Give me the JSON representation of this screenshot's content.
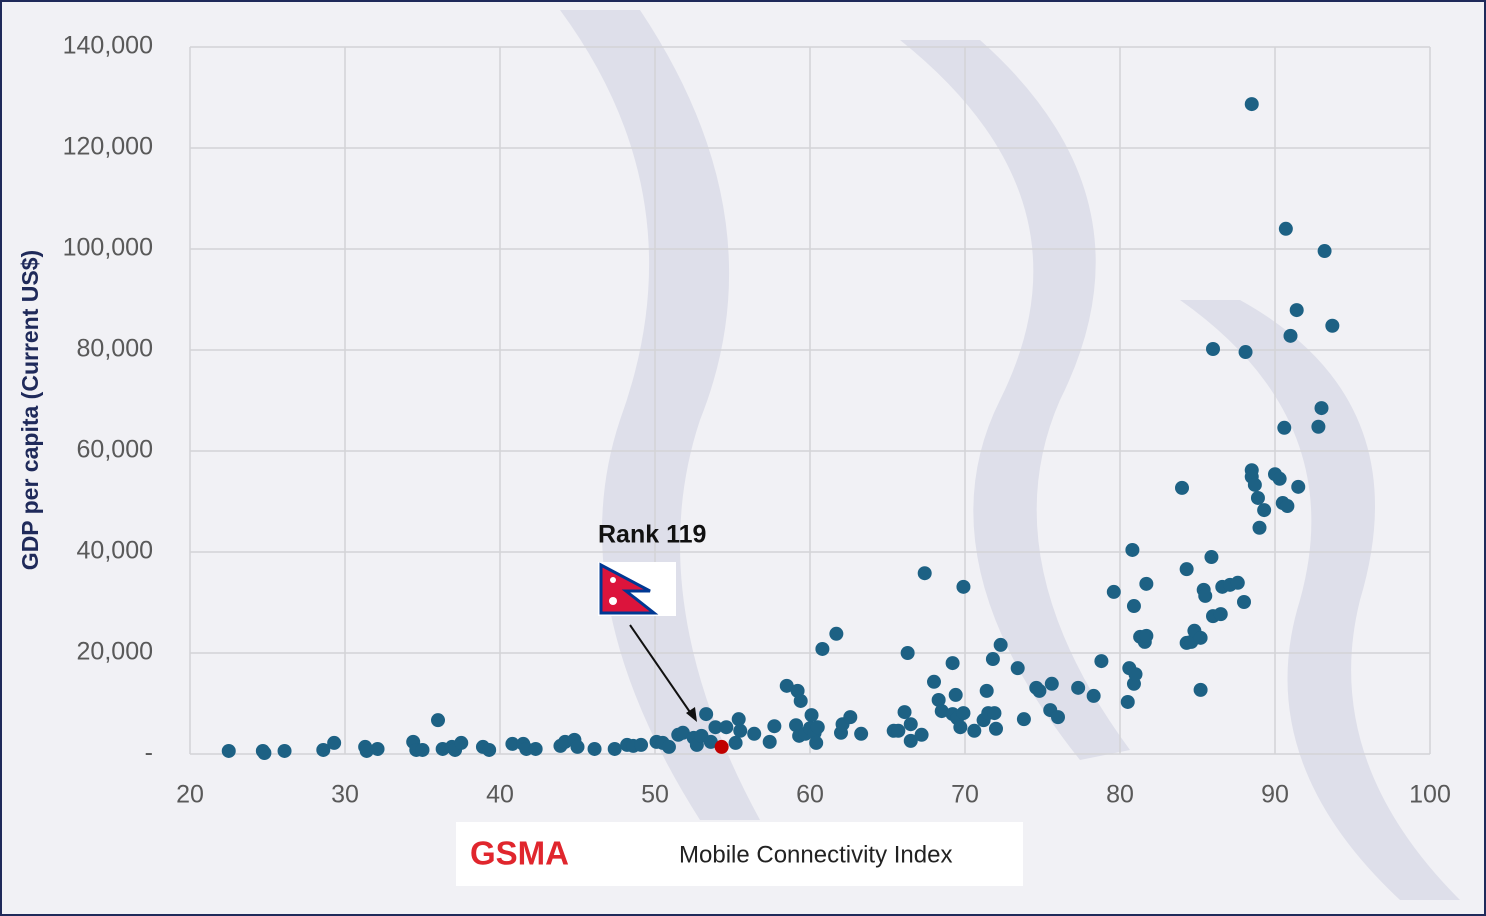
{
  "chart_data": {
    "type": "scatter",
    "ylabel": "GDP per capita (Current US$)",
    "annotation": "Rank 119",
    "xlim": [
      20,
      100
    ],
    "xticks": [
      20,
      30,
      40,
      50,
      60,
      70,
      80,
      90,
      100
    ],
    "ylim": [
      0,
      140000
    ],
    "yticks": [
      {
        "value": 0,
        "label": "-"
      },
      {
        "value": 20000,
        "label": "20,000"
      },
      {
        "value": 40000,
        "label": "40,000"
      },
      {
        "value": 60000,
        "label": "60,000"
      },
      {
        "value": 80000,
        "label": "80,000"
      },
      {
        "value": 100000,
        "label": "100,000"
      },
      {
        "value": 120000,
        "label": "120,000"
      },
      {
        "value": 140000,
        "label": "140,000"
      }
    ],
    "grid": true,
    "series": [
      {
        "color": "#1d6184",
        "x": [
          22.5,
          24.7,
          24.8,
          26.1,
          28.6,
          29.3,
          31.3,
          31.4,
          32.1,
          34.4,
          34.6,
          35.0,
          36.0,
          36.3,
          36.9,
          37.1,
          37.5,
          38.9,
          39.3,
          40.8,
          41.5,
          41.7,
          42.3,
          43.9,
          44.2,
          44.8,
          45.0,
          46.1,
          47.4,
          48.2,
          48.6,
          49.1,
          50.1,
          50.5,
          50.9,
          51.5,
          51.8,
          52.5,
          52.7,
          53.0,
          53.3,
          53.6,
          53.9,
          54.6,
          55.2,
          55.4,
          55.5,
          56.4,
          57.4,
          57.7,
          58.5,
          59.2,
          59.4,
          59.1,
          59.3,
          59.7,
          60.1,
          60.0,
          60.3,
          60.4,
          60.5,
          60.8,
          61.7,
          62.0,
          62.1,
          62.6,
          63.3,
          65.4,
          65.7,
          66.1,
          66.3,
          66.5,
          66.5,
          67.2,
          67.4,
          68.0,
          68.3,
          68.5,
          69.2,
          69.2,
          69.4,
          69.5,
          69.7,
          69.9,
          69.9,
          70.6,
          71.2,
          71.4,
          71.5,
          71.8,
          71.9,
          72.0,
          72.3,
          73.4,
          73.8,
          74.6,
          74.8,
          75.5,
          75.6,
          76.0,
          77.3,
          78.3,
          78.8,
          79.6,
          80.5,
          80.6,
          80.8,
          80.9,
          80.9,
          81.0,
          81.3,
          81.6,
          81.7,
          81.7,
          84.0,
          84.3,
          84.3,
          84.6,
          84.8,
          85.2,
          85.2,
          85.4,
          85.5,
          85.9,
          86.0,
          86.0,
          86.5,
          86.6,
          87.1,
          87.6,
          88.0,
          88.1,
          88.5,
          88.5,
          88.5,
          88.7,
          88.9,
          89.0,
          89.3,
          90.0,
          90.3,
          90.5,
          90.6,
          90.7,
          90.8,
          91.0,
          91.4,
          91.5,
          92.8,
          93.0,
          93.2,
          93.7
        ],
        "values": [
          600,
          600,
          200,
          600,
          800,
          2200,
          1400,
          600,
          1000,
          2400,
          800,
          800,
          6700,
          1000,
          1400,
          800,
          2200,
          1400,
          800,
          2000,
          2000,
          1000,
          1000,
          1600,
          2400,
          2800,
          1400,
          1000,
          1000,
          1800,
          1600,
          1800,
          2400,
          2200,
          1400,
          3800,
          4200,
          3200,
          1800,
          3600,
          7900,
          2400,
          5300,
          5300,
          2200,
          6900,
          4600,
          4000,
          2400,
          5500,
          13500,
          12500,
          10500,
          5700,
          3600,
          4000,
          7700,
          5100,
          4200,
          2200,
          5300,
          20800,
          23800,
          4200,
          5900,
          7300,
          4000,
          4600,
          4600,
          8300,
          20000,
          2600,
          5900,
          3800,
          35800,
          14300,
          10700,
          8500,
          7900,
          18000,
          11700,
          7100,
          5300,
          8100,
          33100,
          4600,
          6700,
          12500,
          8100,
          18800,
          8100,
          5000,
          21600,
          17000,
          6900,
          13100,
          12500,
          8700,
          13900,
          7300,
          13100,
          11500,
          18400,
          32100,
          10300,
          17000,
          40400,
          29300,
          13900,
          15800,
          23200,
          22200,
          33700,
          23400,
          52700,
          36600,
          22000,
          22200,
          24400,
          23000,
          12700,
          32500,
          31300,
          39000,
          80200,
          27300,
          27700,
          33100,
          33500,
          33900,
          30100,
          79600,
          128700,
          56200,
          54900,
          53300,
          50700,
          44800,
          48300,
          55400,
          54500,
          49700,
          64600,
          104000,
          49100,
          82800,
          87900,
          52900,
          64800,
          68500,
          99600,
          84800
        ]
      },
      {
        "color": "#c00000",
        "x": [
          54.3
        ],
        "values": [
          1400
        ]
      }
    ]
  },
  "footer": {
    "brand": "GSMA",
    "product": "Mobile Connectivity Index"
  }
}
